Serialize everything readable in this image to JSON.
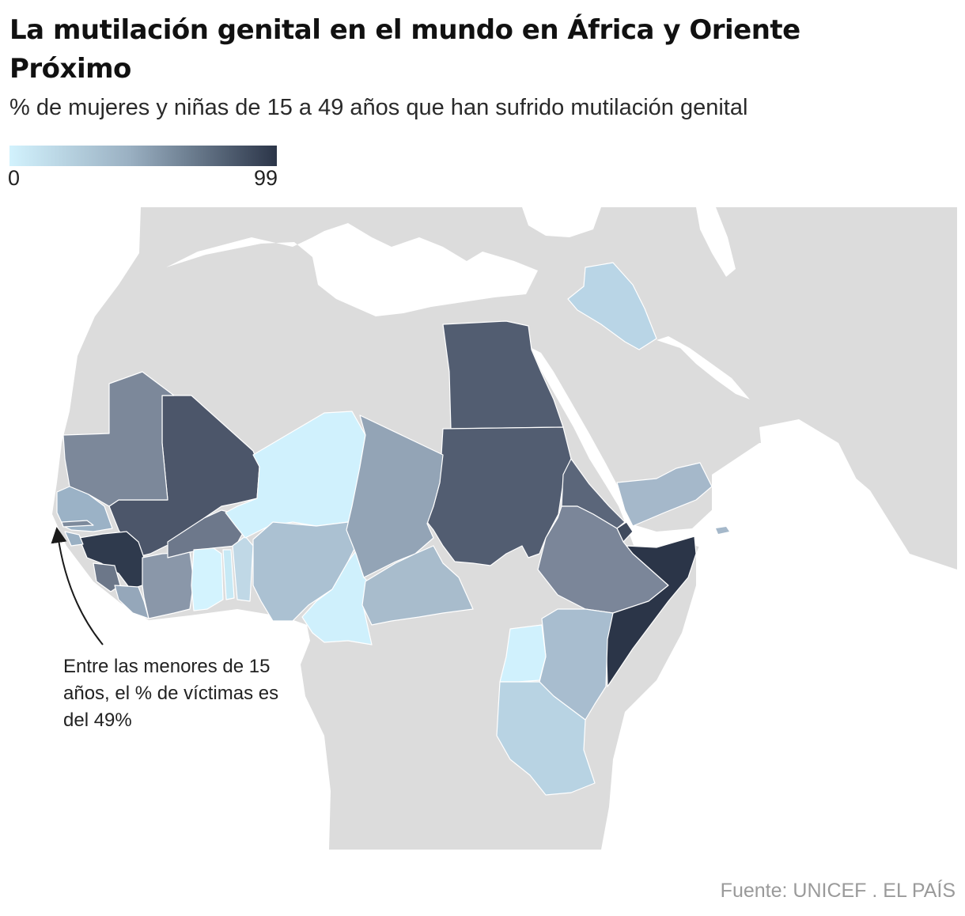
{
  "title": "La mutilación genital en el mundo en África y Oriente Próximo",
  "subtitle": "% de mujeres y niñas de 15 a 49 años que han sufrido mutilación genital",
  "legend": {
    "min": "0",
    "max": "99",
    "color_min": "#d2f2fd",
    "color_max": "#2b3548"
  },
  "annotation": "Entre las menores de 15 años, el % de víctimas es del 49%",
  "source": "Fuente: UNICEF . EL PAÍS",
  "colors": {
    "land": "#dcdcdc",
    "sea": "#ffffff",
    "border": "#ffffff"
  },
  "countries_shaded": [
    "Egipto",
    "Sudán",
    "Mali",
    "Mauritania",
    "Senegal",
    "Gambia",
    "Guinea-Bisáu",
    "Guinea",
    "Sierra Leona",
    "Liberia",
    "Costa de Marfil",
    "Burkina Faso",
    "Ghana",
    "Togo",
    "Benín",
    "Níger",
    "Nigeria",
    "Camerún",
    "Chad",
    "República Centroafricana",
    "Eritrea",
    "Yibuti",
    "Etiopía",
    "Somalia",
    "Kenia",
    "Uganda",
    "Tanzania",
    "Yemen",
    "Irak"
  ]
}
